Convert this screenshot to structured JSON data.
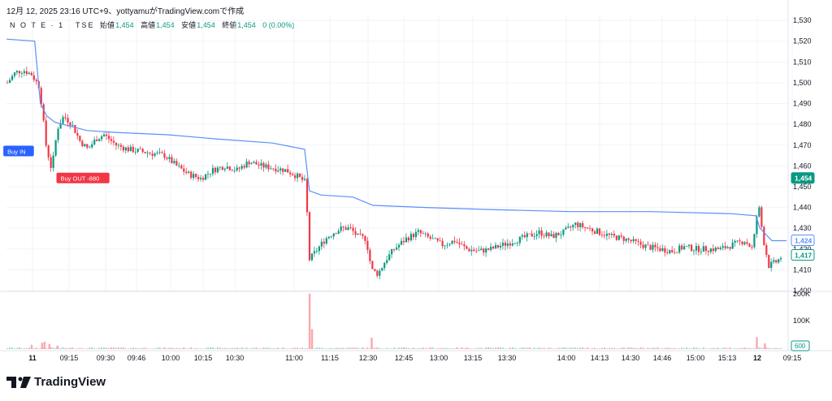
{
  "header": {
    "title": "12月 12, 2025 23:16 UTC+9、yottyamuがTradingView.comで作成"
  },
  "legend": {
    "symbol": "N O T E · 1 · TSE",
    "open_label": "始値",
    "open_value": "1,454",
    "high_label": "高値",
    "high_value": "1,454",
    "low_label": "安値",
    "low_value": "1,454",
    "close_label": "終値",
    "close_value": "1,454",
    "change": "0 (0.00%)"
  },
  "colors": {
    "up": "#089981",
    "down": "#f23645",
    "vwap": "#5b8ff9",
    "grid": "#f0f3fa"
  },
  "price_labels": {
    "current": "1,454",
    "vwap": "1,424",
    "last": "1,417",
    "volume": "600"
  },
  "markers": {
    "buy_in": "Buy IN",
    "buy_out": "Buy OUT -880"
  },
  "logo": {
    "text": "TradingView"
  },
  "chart_data": {
    "type": "candlestick",
    "x_ticks": [
      "11",
      "09:15",
      "09:30",
      "09:46",
      "10:00",
      "10:15",
      "10:30",
      "11:00",
      "11:15",
      "12:30",
      "12:45",
      "13:00",
      "13:15",
      "13:30",
      "14:00",
      "14:13",
      "14:30",
      "14:46",
      "15:00",
      "15:13",
      "12",
      "09:15"
    ],
    "y_ticks": [
      1400,
      1410,
      1420,
      1430,
      1440,
      1450,
      1460,
      1470,
      1480,
      1490,
      1500,
      1510,
      1520,
      1530
    ],
    "y_range": [
      1400,
      1532
    ],
    "volume_ticks": [
      "200K",
      "100K"
    ],
    "volume_range": [
      0,
      200000
    ],
    "price_path": [
      [
        0,
        1500
      ],
      [
        10,
        1505
      ],
      [
        20,
        1506
      ],
      [
        30,
        1504
      ],
      [
        40,
        1498
      ],
      [
        48,
        1470
      ],
      [
        55,
        1458
      ],
      [
        62,
        1478
      ],
      [
        70,
        1484
      ],
      [
        80,
        1480
      ],
      [
        90,
        1472
      ],
      [
        100,
        1468
      ],
      [
        110,
        1473
      ],
      [
        120,
        1475
      ],
      [
        135,
        1470
      ],
      [
        150,
        1468
      ],
      [
        165,
        1467
      ],
      [
        180,
        1466
      ],
      [
        195,
        1465
      ],
      [
        210,
        1460
      ],
      [
        225,
        1456
      ],
      [
        240,
        1454
      ],
      [
        255,
        1458
      ],
      [
        270,
        1460
      ],
      [
        285,
        1458
      ],
      [
        300,
        1462
      ],
      [
        315,
        1460
      ],
      [
        330,
        1459
      ],
      [
        345,
        1458
      ],
      [
        360,
        1455
      ],
      [
        370,
        1452
      ],
      [
        375,
        1415
      ],
      [
        385,
        1420
      ],
      [
        395,
        1425
      ],
      [
        405,
        1428
      ],
      [
        415,
        1430
      ],
      [
        425,
        1430
      ],
      [
        435,
        1426
      ],
      [
        445,
        1425
      ],
      [
        452,
        1410
      ],
      [
        460,
        1408
      ],
      [
        470,
        1415
      ],
      [
        480,
        1420
      ],
      [
        495,
        1425
      ],
      [
        510,
        1428
      ],
      [
        525,
        1425
      ],
      [
        540,
        1422
      ],
      [
        555,
        1424
      ],
      [
        570,
        1420
      ],
      [
        585,
        1419
      ],
      [
        600,
        1420
      ],
      [
        615,
        1422
      ],
      [
        630,
        1424
      ],
      [
        645,
        1426
      ],
      [
        660,
        1428
      ],
      [
        675,
        1426
      ],
      [
        690,
        1428
      ],
      [
        705,
        1432
      ],
      [
        720,
        1430
      ],
      [
        735,
        1428
      ],
      [
        750,
        1426
      ],
      [
        765,
        1425
      ],
      [
        780,
        1423
      ],
      [
        795,
        1421
      ],
      [
        810,
        1420
      ],
      [
        825,
        1419
      ],
      [
        840,
        1421
      ],
      [
        855,
        1420
      ],
      [
        870,
        1420
      ],
      [
        885,
        1420
      ],
      [
        900,
        1422
      ],
      [
        915,
        1424
      ],
      [
        925,
        1420
      ],
      [
        932,
        1442
      ],
      [
        938,
        1425
      ],
      [
        945,
        1412
      ],
      [
        955,
        1414
      ],
      [
        962,
        1417
      ]
    ],
    "vwap": [
      [
        0,
        1521
      ],
      [
        35,
        1520
      ],
      [
        42,
        1490
      ],
      [
        50,
        1484
      ],
      [
        60,
        1481
      ],
      [
        80,
        1479
      ],
      [
        100,
        1477
      ],
      [
        140,
        1476
      ],
      [
        200,
        1475
      ],
      [
        260,
        1473
      ],
      [
        330,
        1471
      ],
      [
        370,
        1468
      ],
      [
        376,
        1448
      ],
      [
        390,
        1446
      ],
      [
        430,
        1445
      ],
      [
        455,
        1441
      ],
      [
        520,
        1440
      ],
      [
        600,
        1439
      ],
      [
        700,
        1438
      ],
      [
        800,
        1438
      ],
      [
        900,
        1437
      ],
      [
        930,
        1436
      ],
      [
        935,
        1430
      ],
      [
        950,
        1424
      ],
      [
        968,
        1424
      ]
    ],
    "volume_spikes": [
      [
        30,
        15000
      ],
      [
        43,
        22000
      ],
      [
        46,
        26000
      ],
      [
        52,
        18000
      ],
      [
        62,
        12000
      ],
      [
        375,
        195000
      ],
      [
        378,
        70000
      ],
      [
        452,
        40000
      ],
      [
        930,
        42000
      ],
      [
        940,
        20000
      ]
    ],
    "vwap_label": "VWAP",
    "markers": [
      {
        "x": 36,
        "price": 1467,
        "label": "Buy IN",
        "color": "#2962ff"
      },
      {
        "x": 60,
        "price": 1454,
        "label": "Buy OUT -880",
        "color": "#f23645"
      }
    ]
  }
}
